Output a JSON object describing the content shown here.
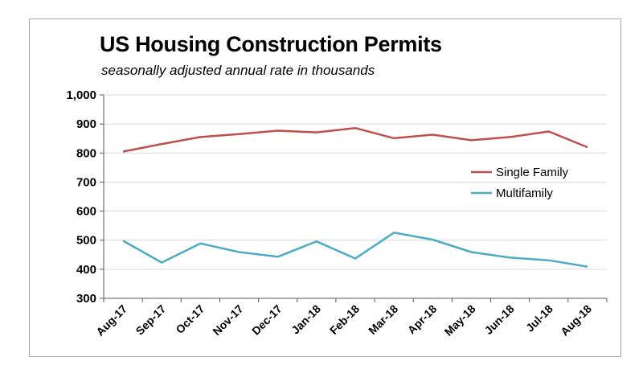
{
  "chart_data": {
    "type": "line",
    "title": "US Housing Construction Permits",
    "subtitle": "seasonally adjusted annual rate in thousands",
    "xlabel": "",
    "ylabel": "",
    "ylim": [
      300,
      1000
    ],
    "ytick_values": [
      300,
      400,
      500,
      600,
      700,
      800,
      900,
      1000
    ],
    "ytick_labels": [
      "300",
      "400",
      "500",
      "600",
      "700",
      "800",
      "900",
      "1,000"
    ],
    "categories": [
      "Aug-17",
      "Sep-17",
      "Oct-17",
      "Nov-17",
      "Dec-17",
      "Jan-18",
      "Feb-18",
      "Mar-18",
      "Apr-18",
      "May-18",
      "Jun-18",
      "Jul-18",
      "Aug-18"
    ],
    "grid": true,
    "legend_position": "right",
    "series": [
      {
        "name": "Single Family",
        "color": "#c0504d",
        "values": [
          805,
          831,
          855,
          865,
          877,
          871,
          886,
          851,
          863,
          844,
          855,
          874,
          820
        ]
      },
      {
        "name": "Multifamily",
        "color": "#4bacc6",
        "values": [
          498,
          423,
          489,
          459,
          443,
          496,
          437,
          526,
          502,
          459,
          440,
          431,
          409
        ]
      }
    ]
  }
}
